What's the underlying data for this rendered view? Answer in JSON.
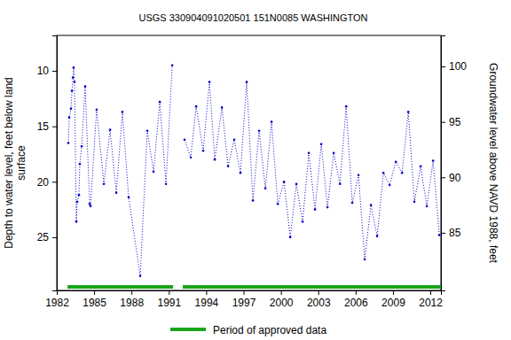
{
  "chart_data": {
    "type": "line",
    "title": "USGS 330904091020501 151N0085 WASHINGTON",
    "ylabel": [
      "Depth to water level, feet below land",
      "surface"
    ],
    "y2label": "Groundwater level above NAVD 1988, feet",
    "x": [
      1982.93,
      1983.0,
      1983.14,
      1983.22,
      1983.3,
      1983.35,
      1983.42,
      1983.57,
      1983.64,
      1983.78,
      1983.85,
      1984.0,
      1984.28,
      1984.64,
      1984.71,
      1985.2,
      1985.78,
      1986.28,
      1986.78,
      1987.27,
      1987.77,
      1988.7,
      1989.27,
      1989.77,
      1990.27,
      1990.77,
      1991.27,
      1991.8,
      1992.26,
      1992.76,
      1993.19,
      1993.76,
      1994.26,
      1994.69,
      1995.26,
      1995.76,
      1996.25,
      1996.75,
      1997.25,
      1997.75,
      1998.25,
      1998.75,
      1999.25,
      1999.75,
      2000.25,
      2000.75,
      2001.24,
      2001.74,
      2002.24,
      2002.74,
      2003.24,
      2003.74,
      2004.24,
      2004.74,
      2005.24,
      2005.73,
      2006.23,
      2006.73,
      2007.23,
      2007.73,
      2008.23,
      2008.73,
      2009.23,
      2009.73,
      2010.23,
      2010.72,
      2011.22,
      2011.72,
      2012.22,
      2012.72
    ],
    "series": [
      {
        "color": "#0000cc",
        "marker": "point",
        "line_style": "dotted",
        "values": [
          16.5,
          14.2,
          13.4,
          11.8,
          10.6,
          9.7,
          11.0,
          23.6,
          21.8,
          21.2,
          18.4,
          16.8,
          11.4,
          22.0,
          22.2,
          13.5,
          20.2,
          15.3,
          21.0,
          13.7,
          21.4,
          28.5,
          15.4,
          19.1,
          12.8,
          20.2,
          9.5,
          null,
          16.2,
          17.8,
          13.2,
          17.2,
          11.0,
          18.0,
          13.3,
          18.6,
          16.2,
          19.2,
          11.0,
          21.7,
          15.4,
          20.6,
          14.6,
          22.0,
          20.0,
          25.0,
          20.2,
          23.6,
          17.4,
          22.5,
          16.6,
          22.3,
          17.4,
          20.2,
          13.2,
          21.9,
          19.4,
          27.0,
          22.1,
          24.9,
          19.2,
          20.3,
          18.2,
          19.2,
          13.7,
          21.8,
          18.6,
          22.2,
          18.1,
          24.8
        ]
      }
    ],
    "xlim": [
      1982,
      2012.85
    ],
    "xticks": [
      1982,
      1985,
      1988,
      1991,
      1994,
      1997,
      2000,
      2003,
      2006,
      2009,
      2012
    ],
    "ylim": [
      6.8,
      29.8
    ],
    "yticks": [
      10,
      15,
      20,
      25
    ],
    "y2lim": [
      102.8,
      79.8
    ],
    "y2ticks": [
      85,
      90,
      95,
      100
    ],
    "approved_periods": {
      "label": "Period of approved data",
      "color": "#1aa51a",
      "ranges": [
        [
          1982.86,
          1991.34
        ],
        [
          1992.12,
          2012.85
        ]
      ]
    }
  }
}
